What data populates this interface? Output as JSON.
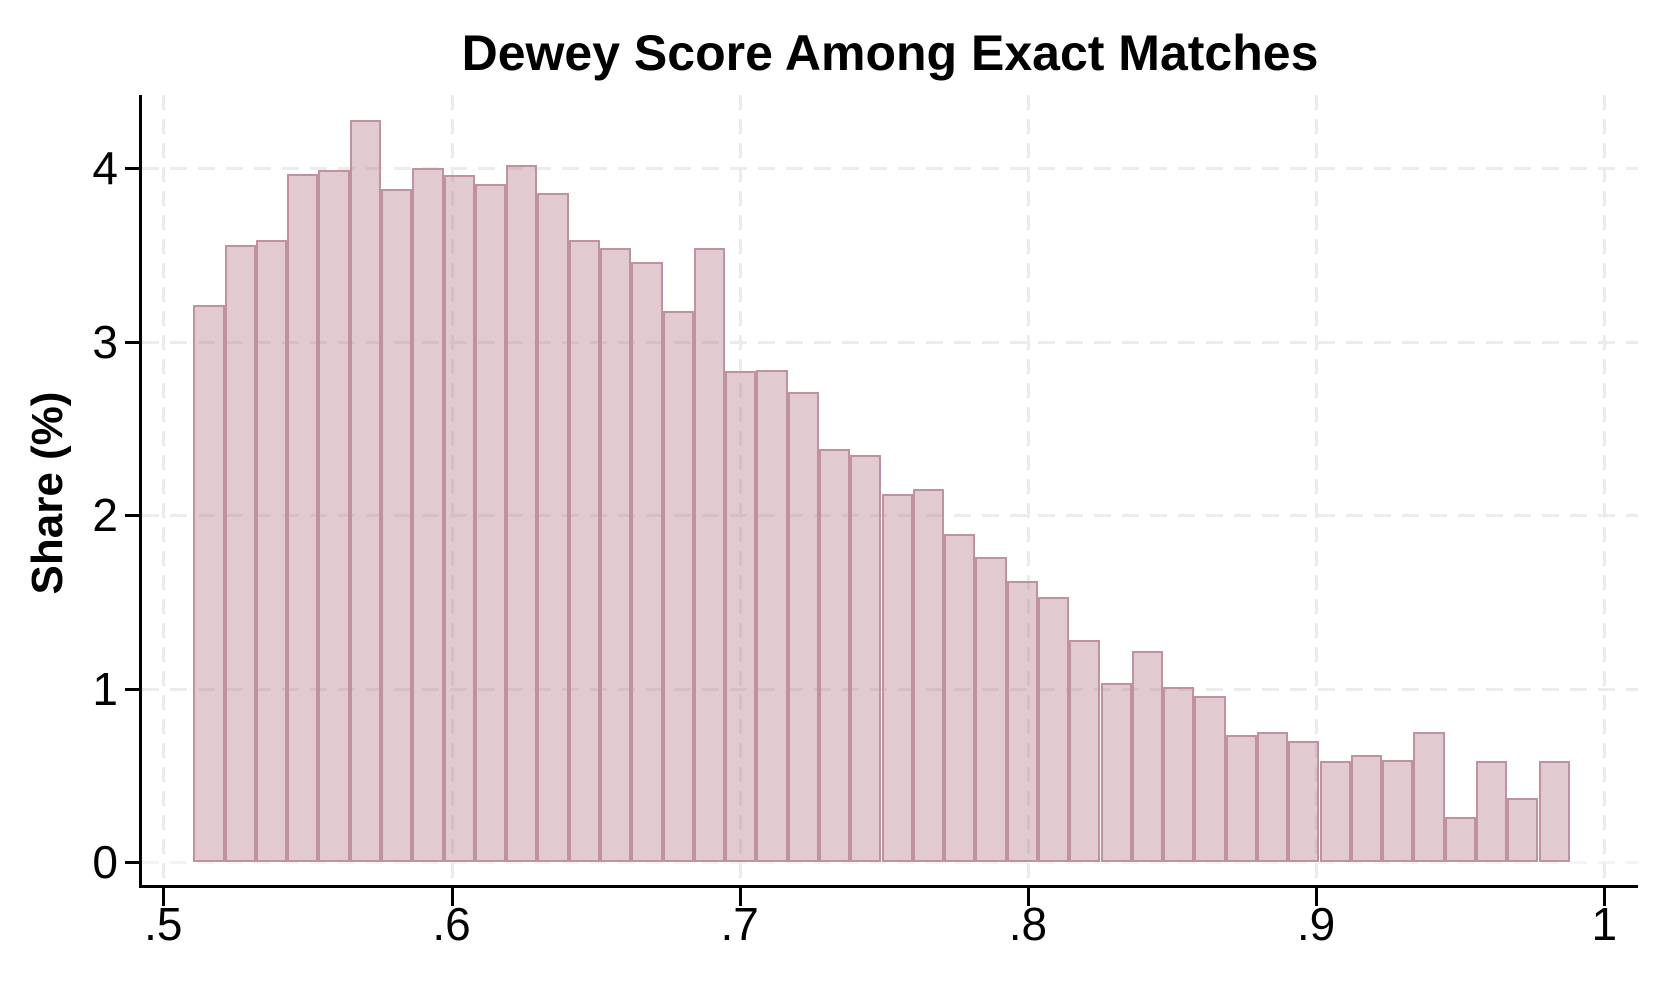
{
  "figure": {
    "title": "Dewey Score Among Exact Matches",
    "y_axis_title": "Share (%)"
  },
  "chart_data": {
    "type": "bar",
    "subtype": "histogram",
    "title": "Dewey Score Among Exact Matches",
    "xlabel": "",
    "ylabel": "Share (%)",
    "bin_start": 0.5104,
    "bin_width": 0.010855,
    "values": [
      3.21,
      3.56,
      3.59,
      3.97,
      3.99,
      4.28,
      3.88,
      4.0,
      3.96,
      3.91,
      4.02,
      3.86,
      3.59,
      3.54,
      3.46,
      3.18,
      3.54,
      2.83,
      2.84,
      2.71,
      2.38,
      2.35,
      2.12,
      2.15,
      1.89,
      1.76,
      1.62,
      1.53,
      1.28,
      1.03,
      1.22,
      1.01,
      0.96,
      0.73,
      0.75,
      0.7,
      0.58,
      0.62,
      0.59,
      0.75,
      0.26,
      0.58,
      0.37,
      0.58
    ],
    "x_ticks": [
      {
        "label": ".5",
        "value": 0.5
      },
      {
        "label": ".6",
        "value": 0.6
      },
      {
        "label": ".7",
        "value": 0.7
      },
      {
        "label": ".8",
        "value": 0.8
      },
      {
        "label": ".9",
        "value": 0.9
      },
      {
        "label": "1",
        "value": 1.0
      }
    ],
    "y_ticks": [
      {
        "label": "0",
        "value": 0
      },
      {
        "label": "1",
        "value": 1
      },
      {
        "label": "2",
        "value": 2
      },
      {
        "label": "3",
        "value": 3
      },
      {
        "label": "4",
        "value": 4
      }
    ],
    "xlim": [
      0.4926,
      1.0117
    ],
    "ylim": [
      0,
      4.42
    ],
    "grid": "both-dashed",
    "legend": "none",
    "colors": {
      "bar_fill": "#e1cbd0",
      "bar_border": "#c0929d",
      "grid_major": "#ebecec",
      "grid_zero": "#f4f4f4",
      "axis": "#000000",
      "background": "#ffffff",
      "text": "#000000"
    }
  }
}
